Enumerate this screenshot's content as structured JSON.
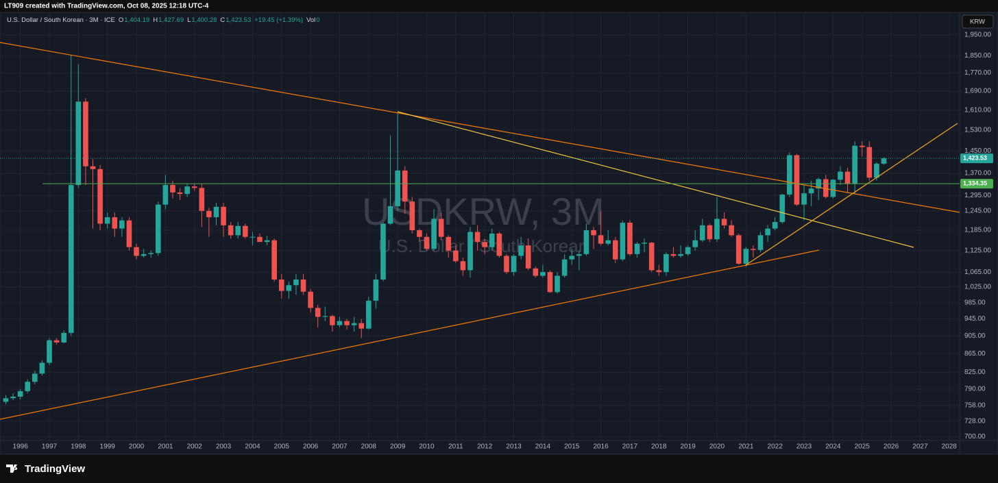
{
  "header": "LT909 created with TradingView.com, Oct 08, 2025 12:18 UTC-4",
  "brand": "TradingView",
  "chart_data": {
    "type": "candlestick",
    "title": "USDKRW, 3M",
    "subtitle": "U.S. Dollar / South Korean",
    "symbol_button": "KRW",
    "legend": {
      "symbol": "U.S. Dollar / South Korean · 3M · ICE",
      "items": [
        {
          "label": "O",
          "value": "1,404.19"
        },
        {
          "label": "H",
          "value": "1,427.69"
        },
        {
          "label": "L",
          "value": "1,400.28"
        },
        {
          "label": "C",
          "value": "1,423.53"
        },
        {
          "label": "",
          "value": "+19.45 (+1.39%)"
        },
        {
          "label": "Vol",
          "value": "0"
        }
      ]
    },
    "log_scale": true,
    "grid": true,
    "up_color": "#26a69a",
    "down_color": "#ef5350",
    "x": [
      1995.5,
      1995.75,
      1996,
      1996.25,
      1996.5,
      1996.75,
      1997,
      1997.25,
      1997.5,
      1997.75,
      1998,
      1998.25,
      1998.5,
      1998.75,
      1999,
      1999.25,
      1999.5,
      1999.75,
      2000,
      2000.25,
      2000.5,
      2000.75,
      2001,
      2001.25,
      2001.5,
      2001.75,
      2002,
      2002.25,
      2002.5,
      2002.75,
      2003,
      2003.25,
      2003.5,
      2003.75,
      2004,
      2004.25,
      2004.5,
      2004.75,
      2005,
      2005.25,
      2005.5,
      2005.75,
      2006,
      2006.25,
      2006.5,
      2006.75,
      2007,
      2007.25,
      2007.5,
      2007.75,
      2008,
      2008.25,
      2008.5,
      2008.75,
      2009,
      2009.25,
      2009.5,
      2009.75,
      2010,
      2010.25,
      2010.5,
      2010.75,
      2011,
      2011.25,
      2011.5,
      2011.75,
      2012,
      2012.25,
      2012.5,
      2012.75,
      2013,
      2013.25,
      2013.5,
      2013.75,
      2014,
      2014.25,
      2014.5,
      2014.75,
      2015,
      2015.25,
      2015.5,
      2015.75,
      2016,
      2016.25,
      2016.5,
      2016.75,
      2017,
      2017.25,
      2017.5,
      2017.75,
      2018,
      2018.25,
      2018.5,
      2018.75,
      2019,
      2019.25,
      2019.5,
      2019.75,
      2020,
      2020.25,
      2020.5,
      2020.75,
      2021,
      2021.25,
      2021.5,
      2021.75,
      2022,
      2022.25,
      2022.5,
      2022.75,
      2023,
      2023.25,
      2023.5,
      2023.75,
      2024,
      2024.25,
      2024.5,
      2024.75,
      2025,
      2025.25,
      2025.5,
      2025.75
    ],
    "open": [
      765,
      772,
      775,
      786,
      805,
      822,
      845,
      895,
      890,
      912,
      1330,
      1645,
      1395,
      1385,
      1205,
      1225,
      1190,
      1215,
      1135,
      1110,
      1115,
      1118,
      1265,
      1330,
      1305,
      1300,
      1325,
      1320,
      1245,
      1225,
      1258,
      1200,
      1170,
      1198,
      1165,
      1165,
      1150,
      1155,
      1045,
      1015,
      1030,
      1045,
      1013,
      972,
      950,
      952,
      930,
      940,
      930,
      935,
      922,
      990,
      1045,
      1205,
      1260,
      1380,
      1275,
      1185,
      1165,
      1130,
      1220,
      1165,
      1125,
      1095,
      1070,
      1180,
      1150,
      1135,
      1175,
      1110,
      1065,
      1110,
      1140,
      1075,
      1055,
      1065,
      1012,
      1055,
      1100,
      1110,
      1115,
      1185,
      1170,
      1145,
      1155,
      1100,
      1208,
      1115,
      1145,
      1148,
      1070,
      1065,
      1115,
      1110,
      1115,
      1135,
      1155,
      1200,
      1158,
      1220,
      1200,
      1170,
      1088,
      1130,
      1127,
      1170,
      1190,
      1210,
      1298,
      1435,
      1265,
      1302,
      1318,
      1350,
      1290,
      1348,
      1376,
      1335,
      1470,
      1465,
      1355,
      1404.19
    ],
    "high": [
      778,
      782,
      790,
      810,
      828,
      850,
      900,
      900,
      918,
      1850,
      1810,
      1660,
      1420,
      1400,
      1240,
      1240,
      1225,
      1225,
      1145,
      1130,
      1125,
      1275,
      1365,
      1345,
      1320,
      1335,
      1335,
      1335,
      1255,
      1270,
      1270,
      1210,
      1210,
      1205,
      1180,
      1175,
      1168,
      1160,
      1060,
      1040,
      1060,
      1060,
      1020,
      980,
      975,
      955,
      950,
      945,
      950,
      945,
      1000,
      1060,
      1210,
      1510,
      1600,
      1395,
      1290,
      1190,
      1175,
      1250,
      1240,
      1170,
      1140,
      1105,
      1195,
      1200,
      1160,
      1190,
      1180,
      1115,
      1115,
      1165,
      1160,
      1080,
      1085,
      1070,
      1065,
      1115,
      1130,
      1125,
      1205,
      1195,
      1245,
      1185,
      1165,
      1215,
      1215,
      1150,
      1160,
      1150,
      1085,
      1120,
      1135,
      1140,
      1140,
      1185,
      1220,
      1205,
      1290,
      1240,
      1215,
      1175,
      1135,
      1140,
      1180,
      1200,
      1225,
      1300,
      1445,
      1440,
      1330,
      1345,
      1355,
      1365,
      1350,
      1395,
      1390,
      1487,
      1487,
      1487,
      1410,
      1427.69
    ],
    "low": [
      760,
      768,
      770,
      782,
      800,
      818,
      840,
      885,
      888,
      905,
      1320,
      1330,
      1190,
      1185,
      1190,
      1165,
      1165,
      1125,
      1100,
      1105,
      1105,
      1110,
      1250,
      1285,
      1280,
      1290,
      1310,
      1195,
      1165,
      1200,
      1165,
      1160,
      1160,
      1160,
      1140,
      1150,
      1140,
      1040,
      995,
      995,
      1005,
      1005,
      960,
      925,
      940,
      915,
      925,
      920,
      915,
      900,
      920,
      970,
      1040,
      1200,
      1245,
      1235,
      1175,
      1150,
      1125,
      1125,
      1155,
      1105,
      1090,
      1055,
      1050,
      1125,
      1115,
      1125,
      1105,
      1060,
      1055,
      1100,
      1070,
      1050,
      1050,
      1010,
      1008,
      1050,
      1085,
      1070,
      1110,
      1130,
      1140,
      1140,
      1090,
      1095,
      1110,
      1105,
      1120,
      1065,
      1055,
      1055,
      1105,
      1105,
      1110,
      1125,
      1150,
      1150,
      1150,
      1190,
      1165,
      1085,
      1080,
      1105,
      1120,
      1150,
      1185,
      1205,
      1290,
      1260,
      1215,
      1260,
      1280,
      1285,
      1285,
      1330,
      1305,
      1300,
      1430,
      1345,
      1345,
      1400.28
    ],
    "close": [
      772,
      775,
      786,
      805,
      822,
      845,
      895,
      890,
      912,
      1330,
      1645,
      1395,
      1385,
      1205,
      1225,
      1190,
      1215,
      1135,
      1110,
      1115,
      1118,
      1265,
      1330,
      1305,
      1300,
      1325,
      1320,
      1245,
      1225,
      1258,
      1200,
      1170,
      1198,
      1165,
      1165,
      1150,
      1155,
      1045,
      1015,
      1030,
      1045,
      1013,
      972,
      950,
      952,
      930,
      940,
      930,
      935,
      922,
      990,
      1045,
      1205,
      1260,
      1380,
      1275,
      1185,
      1165,
      1130,
      1220,
      1165,
      1125,
      1095,
      1070,
      1180,
      1150,
      1135,
      1175,
      1110,
      1065,
      1110,
      1140,
      1075,
      1055,
      1065,
      1012,
      1055,
      1100,
      1110,
      1115,
      1185,
      1170,
      1145,
      1155,
      1100,
      1208,
      1115,
      1145,
      1148,
      1070,
      1065,
      1115,
      1110,
      1115,
      1135,
      1155,
      1200,
      1158,
      1220,
      1200,
      1170,
      1088,
      1130,
      1127,
      1170,
      1190,
      1210,
      1298,
      1435,
      1265,
      1302,
      1318,
      1350,
      1290,
      1348,
      1376,
      1335,
      1470,
      1465,
      1355,
      1404.19,
      1423.53
    ],
    "xlim": [
      1995.3,
      2028.36
    ],
    "xticks": [
      1996,
      1997,
      1998,
      1999,
      2000,
      2001,
      2002,
      2003,
      2004,
      2005,
      2006,
      2007,
      2008,
      2009,
      2010,
      2011,
      2012,
      2013,
      2014,
      2015,
      2016,
      2017,
      2018,
      2019,
      2020,
      2021,
      2022,
      2023,
      2024,
      2025,
      2026,
      2027,
      2028
    ],
    "ylim": [
      693,
      2066
    ],
    "yticks": [
      {
        "value": 700,
        "label": "700.00"
      },
      {
        "value": 728,
        "label": "728.00"
      },
      {
        "value": 758,
        "label": "758.00"
      },
      {
        "value": 790,
        "label": "790.00"
      },
      {
        "value": 825,
        "label": "825.00"
      },
      {
        "value": 865,
        "label": "865.00"
      },
      {
        "value": 905,
        "label": "905.00"
      },
      {
        "value": 945,
        "label": "945.00"
      },
      {
        "value": 985,
        "label": "985.00"
      },
      {
        "value": 1025,
        "label": "1,025.00"
      },
      {
        "value": 1065,
        "label": "1,065.00"
      },
      {
        "value": 1125,
        "label": "1,125.00"
      },
      {
        "value": 1185,
        "label": "1,185.00"
      },
      {
        "value": 1245,
        "label": "1,245.00"
      },
      {
        "value": 1295,
        "label": "1,295.00"
      },
      {
        "value": 1370,
        "label": "1,370.00"
      },
      {
        "value": 1450,
        "label": "1,450.00"
      },
      {
        "value": 1530,
        "label": "1,530.00"
      },
      {
        "value": 1610,
        "label": "1,610.00"
      },
      {
        "value": 1690,
        "label": "1,690.00"
      },
      {
        "value": 1770,
        "label": "1,770.00"
      },
      {
        "value": 1850,
        "label": "1,850.00"
      },
      {
        "value": 1950,
        "label": "1,950.00"
      }
    ],
    "hline": {
      "value": 1334.35,
      "label": "1,334.35",
      "color": "#4caf50"
    },
    "last_price": {
      "value": 1423.53,
      "label": "1,423.53",
      "color": "#26a69a"
    }
  }
}
